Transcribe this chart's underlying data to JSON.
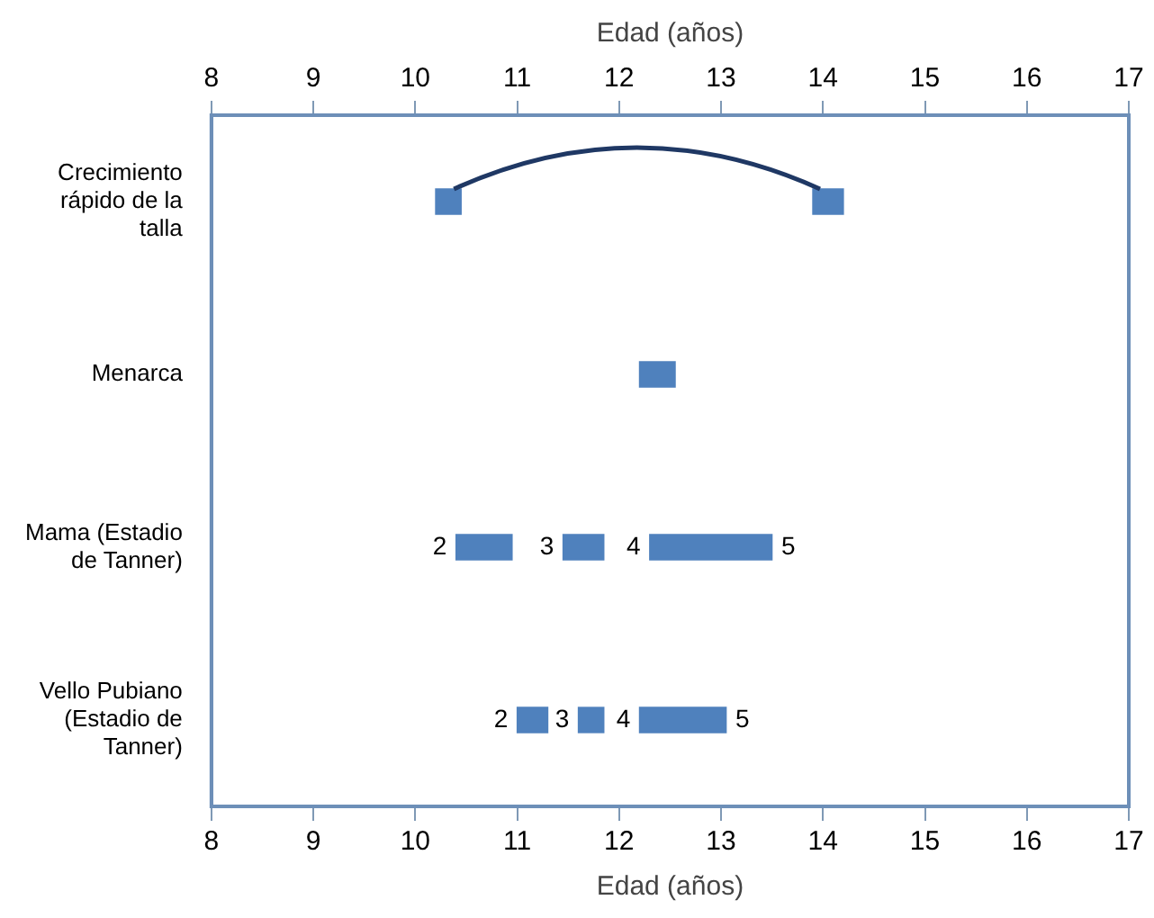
{
  "chart_data": {
    "type": "bar",
    "orientation": "horizontal",
    "xlabel": "Edad (años)",
    "x2label": "Edad (años)",
    "categories": [
      "Crecimiento rápido de la talla",
      "Menarca",
      "Mama (Estadio de Tanner)",
      "Vello Pubiano (Estadio de Tanner)"
    ],
    "series": [
      {
        "color": "#4f81bd",
        "base": [
          10.2,
          12.2,
          10.4,
          11.0
        ],
        "values": [
          0.25,
          0.35,
          0.55,
          0.3
        ]
      },
      {
        "color": "#4f81bd",
        "base": [
          13.9,
          null,
          11.45,
          11.6
        ],
        "values": [
          0.3,
          null,
          0.4,
          0.25
        ]
      },
      {
        "color": "#4f81bd",
        "base": [
          null,
          null,
          12.3,
          12.2
        ],
        "values": [
          null,
          null,
          1.2,
          0.85
        ]
      }
    ],
    "xlim": [
      8,
      17
    ],
    "xticks": [
      8,
      9,
      10,
      11,
      12,
      13,
      14,
      15,
      16,
      17
    ],
    "x2lim": [
      8,
      17
    ],
    "x2ticks": [
      8,
      9,
      10,
      11,
      12,
      13,
      14,
      15,
      16,
      17
    ],
    "grid": false,
    "legend": false,
    "annotations": [
      {
        "text": "2",
        "x": 10.4,
        "y": "Mama (Estadio de Tanner)"
      },
      {
        "text": "3",
        "x": 11.45,
        "y": "Mama (Estadio de Tanner)"
      },
      {
        "text": "4",
        "x": 12.3,
        "y": "Mama (Estadio de Tanner)"
      },
      {
        "text": "5",
        "x": 13.5,
        "y": "Mama (Estadio de Tanner)"
      },
      {
        "text": "2",
        "x": 11.0,
        "y": "Vello Pubiano (Estadio de Tanner)"
      },
      {
        "text": "3",
        "x": 11.6,
        "y": "Vello Pubiano (Estadio de Tanner)"
      },
      {
        "text": "4",
        "x": 12.2,
        "y": "Vello Pubiano (Estadio de Tanner)"
      },
      {
        "text": "5",
        "x": 13.05,
        "y": "Vello Pubiano (Estadio de Tanner)"
      }
    ]
  }
}
